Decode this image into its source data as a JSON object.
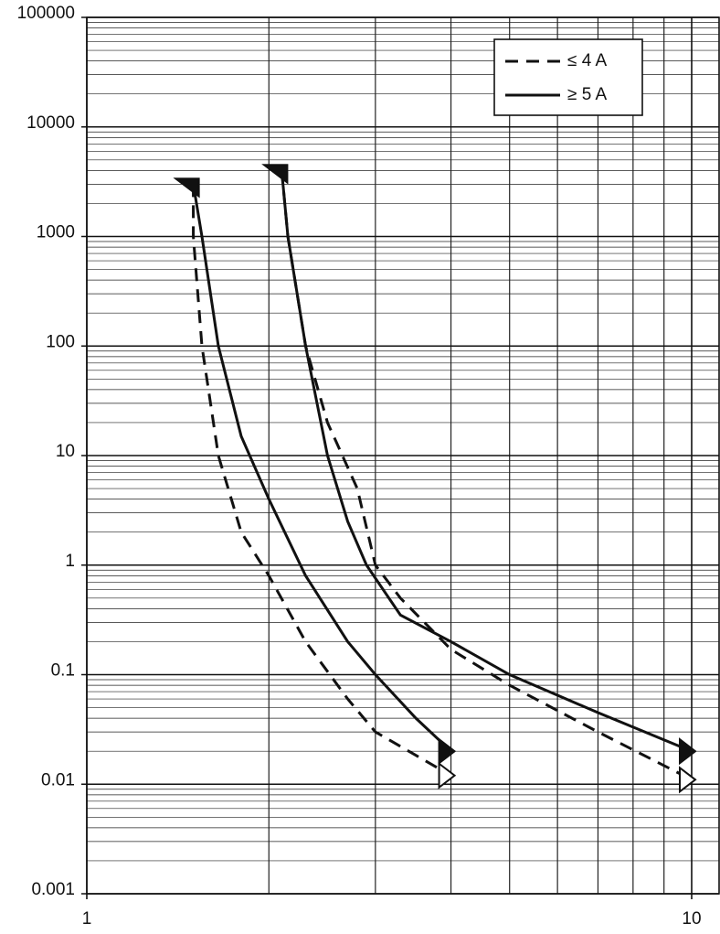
{
  "chart_data": {
    "type": "line",
    "log_x": true,
    "log_y": true,
    "grid": true,
    "minor_grid": true,
    "legend": "top-right",
    "xlim": [
      1,
      11.1
    ],
    "xticks": [
      1,
      10
    ],
    "ylim": [
      0.001,
      100000
    ],
    "yticks": [
      0.001,
      0.01,
      0.1,
      1,
      10,
      100,
      1000,
      10000,
      100000
    ],
    "series": [
      {
        "name": "≤ 4 A",
        "color": "#111111",
        "dashed": true,
        "x": [
          1.5,
          1.5,
          1.55,
          1.65,
          1.8,
          2,
          2.3,
          2.7,
          3,
          4
        ],
        "values": [
          3000,
          1000,
          100,
          10,
          2,
          0.8,
          0.2,
          0.06,
          0.03,
          0.012
        ]
      },
      {
        "name": "≥ 5 A",
        "color": "#111111",
        "dashed": false,
        "x": [
          1.5,
          1.55,
          1.65,
          1.8,
          2,
          2.3,
          2.7,
          3,
          3.5,
          4
        ],
        "values": [
          3000,
          1000,
          100,
          15,
          4,
          0.8,
          0.2,
          0.1,
          0.04,
          0.02
        ]
      },
      {
        "name": "≤ 4 A",
        "color": "#111111",
        "dashed": true,
        "x": [
          2.1,
          2.15,
          2.3,
          2.5,
          2.8,
          3,
          3.3,
          4,
          5,
          7,
          10
        ],
        "values": [
          4000,
          1000,
          100,
          20,
          5,
          1,
          0.5,
          0.17,
          0.08,
          0.03,
          0.011
        ]
      },
      {
        "name": "≥ 5 A",
        "color": "#111111",
        "dashed": false,
        "x": [
          2.1,
          2.15,
          2.3,
          2.5,
          2.7,
          2.9,
          3.3,
          4,
          5,
          7,
          10
        ],
        "values": [
          4000,
          1000,
          100,
          10,
          2.5,
          1,
          0.35,
          0.2,
          0.1,
          0.045,
          0.02
        ]
      }
    ]
  }
}
